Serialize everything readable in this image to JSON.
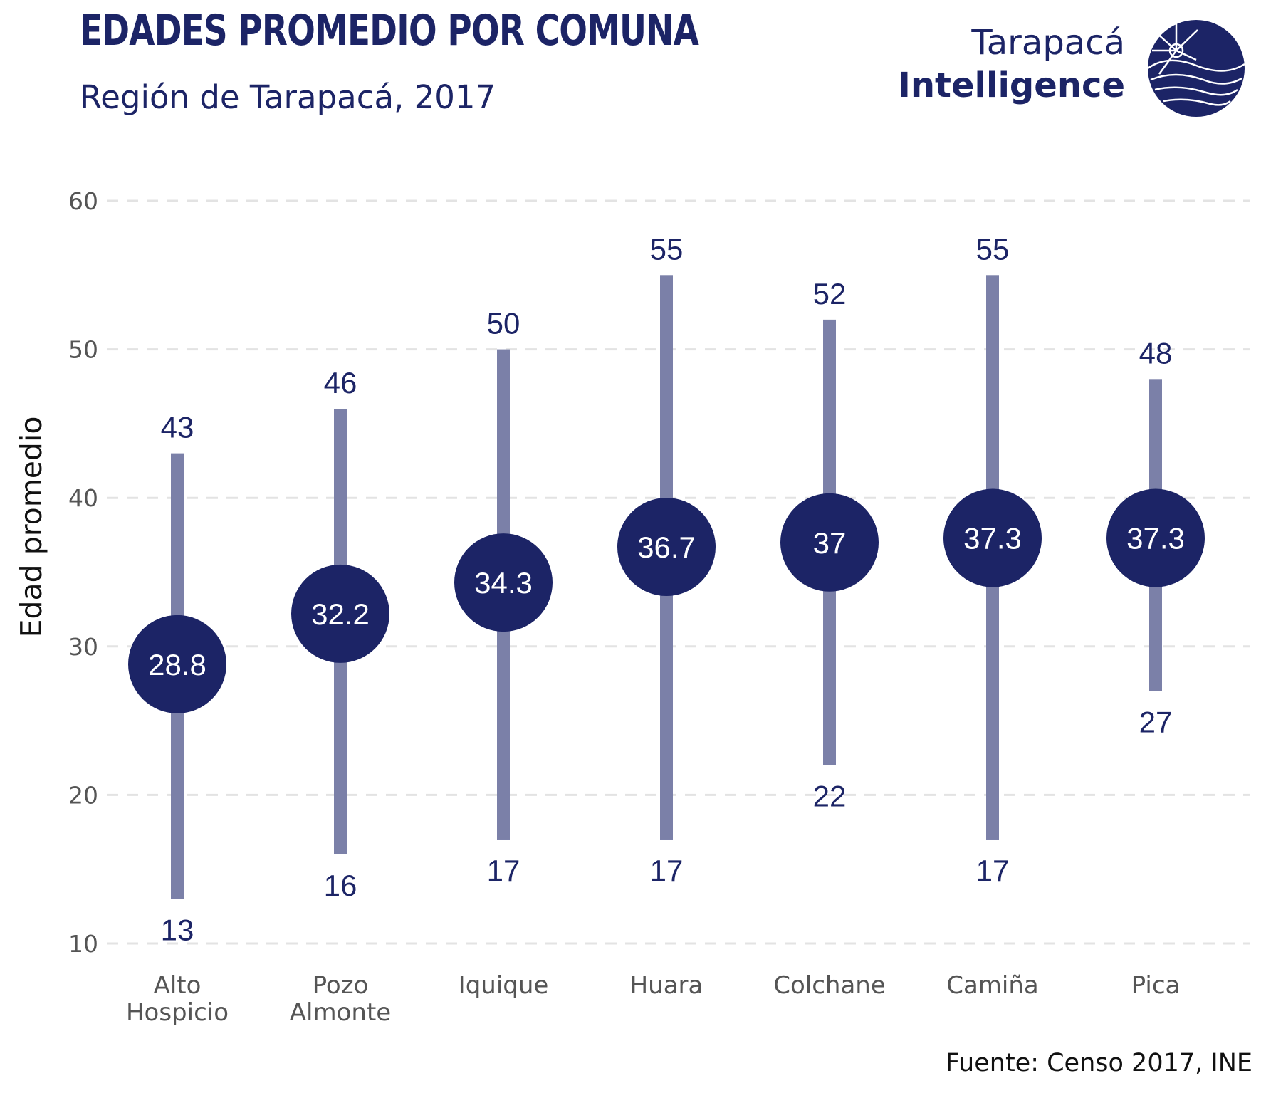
{
  "header": {
    "title": "EDADES PROMEDIO POR COMUNA",
    "subtitle": "Región de Tarapacá, 2017"
  },
  "logo": {
    "line1": "Tarapacá",
    "line2": "Intelligence",
    "icon": "sun-horizon-seal-icon"
  },
  "footer": {
    "source": "Fuente: Censo 2017, INE"
  },
  "colors": {
    "primary": "#1c2466",
    "range_bar": "#7b80a8",
    "grid": "#e3e3e3",
    "tick_text": "#555555"
  },
  "chart_data": {
    "type": "dot-range",
    "title": "EDADES PROMEDIO POR COMUNA",
    "subtitle": "Región de Tarapacá, 2017",
    "xlabel": "",
    "ylabel": "Edad promedio",
    "ylim": [
      10,
      60
    ],
    "yticks": [
      10,
      20,
      30,
      40,
      50,
      60
    ],
    "grid": "horizontal-dashed",
    "categories": [
      "Alto\nHospicio",
      "Pozo\nAlmonte",
      "Iquique",
      "Huara",
      "Colchane",
      "Camiña",
      "Pica"
    ],
    "series": [
      {
        "values": [
          28.8,
          32.2,
          34.3,
          36.7,
          37,
          37.3,
          37.3
        ]
      },
      {
        "values": [
          43,
          46,
          50,
          55,
          52,
          55,
          48
        ]
      },
      {
        "values": [
          13,
          16,
          17,
          17,
          22,
          17,
          27
        ]
      }
    ]
  }
}
